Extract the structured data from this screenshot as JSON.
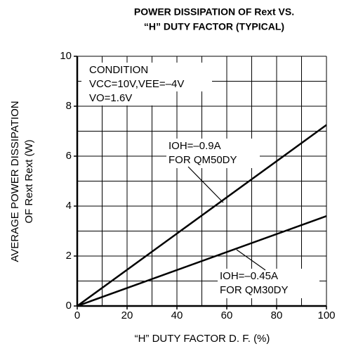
{
  "chart_data": {
    "type": "line",
    "title": "POWER DISSIPATION OF Rext VS.",
    "subtitle": "“H” DUTY FACTOR (TYPICAL)",
    "x_label": "“H” DUTY FACTOR D. F.  (%)",
    "y_label": [
      "AVERAGE POWER DISSIPATION",
      "OF Rext   Rext (W)"
    ],
    "x": [
      0,
      100
    ],
    "series": [
      {
        "name": "IOH=–0.9A FOR QM50DY",
        "color": "#000000",
        "values": [
          0,
          7.25
        ]
      },
      {
        "name": "IOH=–0.45A FOR QM30DY",
        "color": "#000000",
        "values": [
          0,
          3.6
        ]
      }
    ],
    "annotations": [
      [
        "IOH=–0.9A",
        "FOR QM50DY"
      ],
      [
        "IOH=–0.45A",
        "FOR QM30DY"
      ],
      [
        "CONDITION",
        "VCC=10V,VEE=–4V",
        "VO=1.6V"
      ]
    ],
    "xlim": [
      0,
      100
    ],
    "ylim": [
      0,
      10
    ],
    "xticks": [
      0,
      20,
      40,
      60,
      80,
      100
    ],
    "yticks": [
      0,
      2,
      4,
      6,
      8,
      10
    ],
    "xgrid": [
      10,
      20,
      30,
      40,
      50,
      60,
      70,
      80,
      90,
      100
    ],
    "ygrid": [
      1,
      2,
      3,
      4,
      5,
      6,
      7,
      8,
      9,
      10
    ],
    "grid": true
  }
}
